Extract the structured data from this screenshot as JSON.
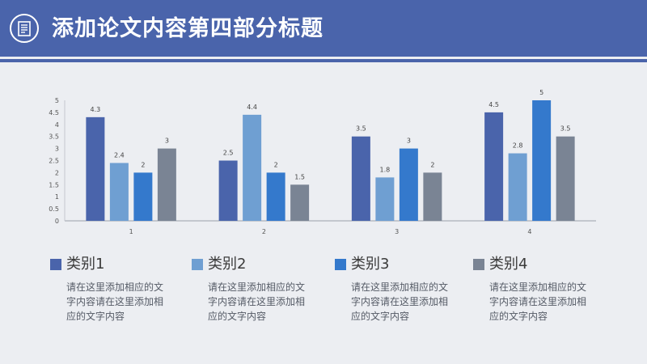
{
  "header": {
    "title": "添加论文内容第四部分标题",
    "icon": "document-icon"
  },
  "colors": {
    "header": "#4a64ab",
    "series": [
      "#4a64ab",
      "#6f9fd2",
      "#3479cc",
      "#7a8494"
    ]
  },
  "chart_data": {
    "type": "bar",
    "title": "",
    "xlabel": "",
    "ylabel": "",
    "categories": [
      "1",
      "2",
      "3",
      "4"
    ],
    "ylim": [
      0,
      5
    ],
    "yticks": [
      "0",
      "0.5",
      "1",
      "1.5",
      "2",
      "2.5",
      "3",
      "3.5",
      "4",
      "4.5",
      "5"
    ],
    "grid": false,
    "legend_position": "bottom",
    "data_labels": [
      [
        "4.3",
        "2.5",
        "3.5",
        "4.5"
      ],
      [
        "2.4",
        "4.4",
        "1.8",
        "2.8"
      ],
      [
        "2",
        "2",
        "3",
        "5"
      ],
      [
        "3",
        "1.5",
        "2",
        "3.5"
      ]
    ],
    "series": [
      {
        "name": "类别1",
        "values": [
          4.3,
          2.5,
          3.5,
          4.5
        ]
      },
      {
        "name": "类别2",
        "values": [
          2.4,
          4.4,
          1.8,
          2.8
        ]
      },
      {
        "name": "类别3",
        "values": [
          2,
          2,
          3,
          5
        ]
      },
      {
        "name": "类别4",
        "values": [
          3,
          1.5,
          2,
          3.5
        ]
      }
    ]
  },
  "legend": [
    {
      "label": "类别1",
      "desc": "请在这里添加相应的文字内容请在这里添加相应的文字内容"
    },
    {
      "label": "类别2",
      "desc": "请在这里添加相应的文字内容请在这里添加相应的文字内容"
    },
    {
      "label": "类别3",
      "desc": "请在这里添加相应的文字内容请在这里添加相应的文字内容"
    },
    {
      "label": "类别4",
      "desc": "请在这里添加相应的文字内容请在这里添加相应的文字内容"
    }
  ]
}
